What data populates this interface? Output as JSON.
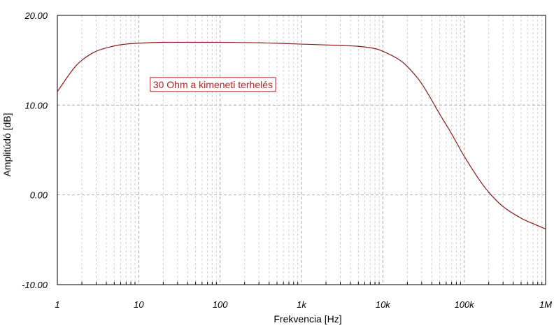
{
  "chart_data": {
    "type": "line",
    "xlabel": "Frekvencia [Hz]",
    "ylabel": "Amplitúdó [dB]",
    "xscale": "log",
    "xlim": [
      1,
      1000000
    ],
    "ylim": [
      -10,
      20
    ],
    "x_tick_labels": [
      "1",
      "10",
      "100",
      "1k",
      "10k",
      "100k",
      "1M"
    ],
    "y_tick_labels": [
      "20.00",
      "10.00",
      "0.00",
      "-10.00"
    ],
    "grid": true,
    "line_color": "#8b1a1a",
    "annotation": {
      "text": "30 Ohm a kimeneti terhelés",
      "x": 15,
      "y": 12.3,
      "color": "#b22222"
    },
    "series": [
      {
        "x": [
          1,
          1.5,
          2,
          3,
          5,
          7,
          10,
          20,
          50,
          100,
          300,
          1000,
          3000,
          5000,
          8000,
          10000,
          15000,
          20000,
          30000,
          50000,
          70000,
          100000,
          150000,
          200000,
          300000,
          500000,
          700000,
          1000000
        ],
        "y": [
          11.5,
          13.8,
          15.0,
          16.0,
          16.6,
          16.8,
          16.9,
          17.0,
          17.0,
          17.0,
          16.95,
          16.8,
          16.65,
          16.55,
          16.3,
          16.0,
          15.2,
          14.3,
          12.4,
          9.0,
          6.8,
          4.3,
          1.8,
          0.3,
          -1.3,
          -2.6,
          -3.2,
          -3.8
        ]
      }
    ]
  }
}
